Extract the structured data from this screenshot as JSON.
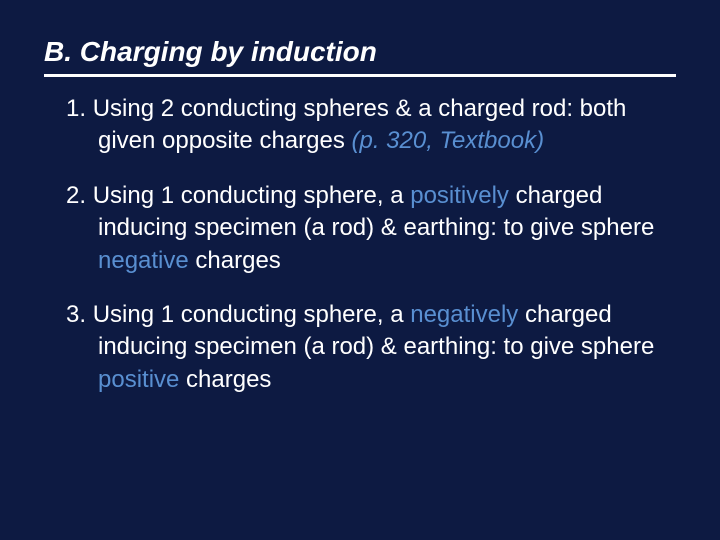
{
  "background_color": "#0d1a42",
  "text_color": "#ffffff",
  "accent_color": "#598fd1",
  "underline_color": "#ffffff",
  "title": {
    "text": "B. Charging by induction",
    "font_size": 28,
    "bold": true,
    "italic": true,
    "underline": true
  },
  "items": [
    {
      "num": "1.",
      "lead": "Using 2 conducting spheres & a charged rod: both given opposite charges ",
      "ref": "(p. 320, Textbook)"
    },
    {
      "num": "2.",
      "pre": "Using 1 conducting sphere, a ",
      "kw1": "positively",
      "mid": " charged inducing specimen (a rod) & earthing: to give sphere ",
      "kw2": "negative",
      "post": " charges"
    },
    {
      "num": "3.",
      "pre": "Using 1 conducting sphere, a ",
      "kw1": "negatively",
      "mid": " charged inducing specimen (a rod) & earthing: to give sphere ",
      "kw2": "positive",
      "post": " charges"
    }
  ]
}
